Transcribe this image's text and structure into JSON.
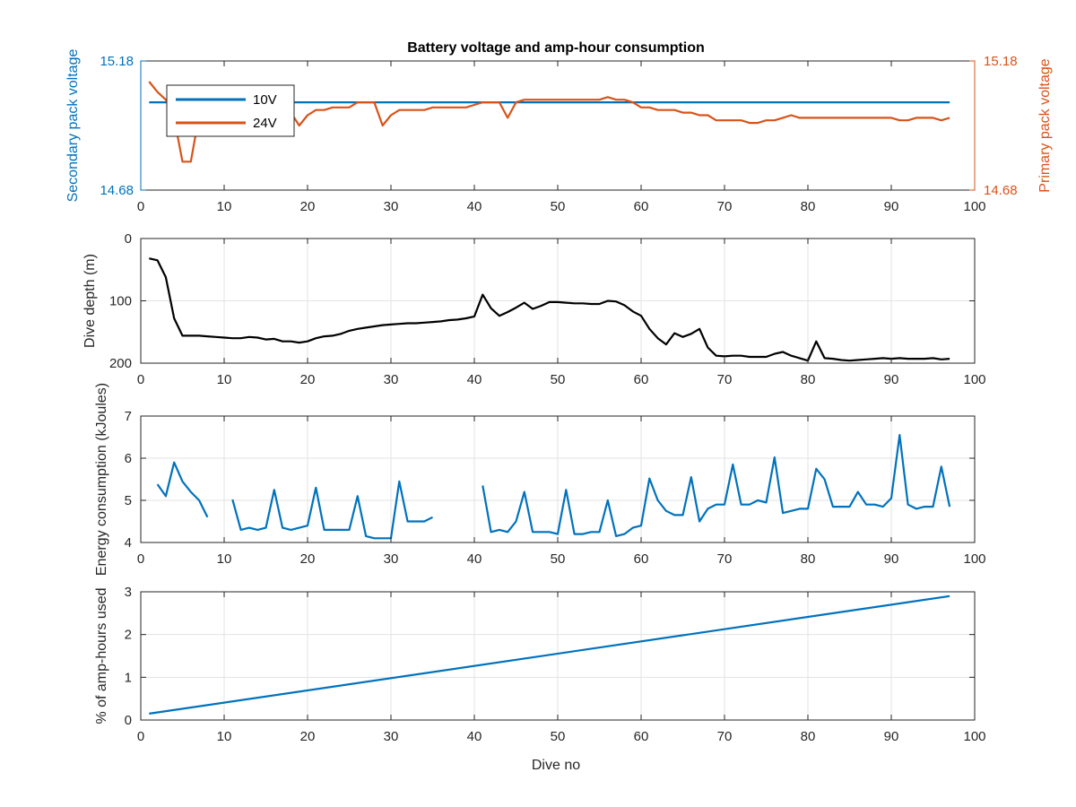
{
  "title": "Battery voltage and amp-hour consumption",
  "xlabel": "Dive no",
  "colors": {
    "blue": "#0072BD",
    "orange": "#D95319",
    "black": "#000000",
    "grid": "#e3e3e3",
    "axis": "#262626"
  },
  "chart_data": [
    {
      "type": "line",
      "ylabel_left": "Secondary pack voltage",
      "ylabel_right": "Primary pack voltage",
      "xlim": [
        0,
        100
      ],
      "ylim": [
        14.68,
        15.18
      ],
      "xticks": [
        0,
        10,
        20,
        30,
        40,
        50,
        60,
        70,
        80,
        90,
        100
      ],
      "yticks_left": [
        "14.68",
        "15.18"
      ],
      "yticks_right": [
        "14.68",
        "15.18"
      ],
      "grid": false,
      "legend": {
        "location": "top-left",
        "entries": [
          "10V",
          "24V"
        ]
      },
      "series": [
        {
          "name": "10V",
          "color": "#0072BD",
          "axis": "left",
          "x": [
            1,
            97
          ],
          "y": [
            15.02,
            15.02
          ]
        },
        {
          "name": "24V",
          "color": "#D95319",
          "axis": "right",
          "x": [
            1,
            2,
            3,
            4,
            5,
            6,
            7,
            8,
            9,
            10,
            11,
            12,
            13,
            14,
            15,
            16,
            17,
            18,
            19,
            20,
            21,
            22,
            23,
            24,
            25,
            26,
            27,
            28,
            29,
            30,
            31,
            32,
            33,
            34,
            35,
            36,
            37,
            38,
            39,
            40,
            41,
            42,
            43,
            44,
            45,
            46,
            47,
            48,
            49,
            50,
            51,
            52,
            53,
            54,
            55,
            56,
            57,
            58,
            59,
            60,
            61,
            62,
            63,
            64,
            65,
            66,
            67,
            68,
            69,
            70,
            71,
            72,
            73,
            74,
            75,
            76,
            77,
            78,
            79,
            80,
            81,
            82,
            83,
            84,
            85,
            86,
            87,
            88,
            89,
            90,
            91,
            92,
            93,
            94,
            95,
            96,
            97
          ],
          "y": [
            15.1,
            15.06,
            15.03,
            14.96,
            14.79,
            14.79,
            14.97,
            14.99,
            14.99,
            14.99,
            14.99,
            14.98,
            14.98,
            14.99,
            14.98,
            14.98,
            14.98,
            14.98,
            14.93,
            14.97,
            14.99,
            14.99,
            15.0,
            15.0,
            15.0,
            15.02,
            15.02,
            15.02,
            14.93,
            14.97,
            14.99,
            14.99,
            14.99,
            14.99,
            15.0,
            15.0,
            15.0,
            15.0,
            15.0,
            15.01,
            15.02,
            15.02,
            15.02,
            14.96,
            15.02,
            15.03,
            15.03,
            15.03,
            15.03,
            15.03,
            15.03,
            15.03,
            15.03,
            15.03,
            15.03,
            15.04,
            15.03,
            15.03,
            15.02,
            15.0,
            15.0,
            14.99,
            14.99,
            14.99,
            14.98,
            14.98,
            14.97,
            14.97,
            14.95,
            14.95,
            14.95,
            14.95,
            14.94,
            14.94,
            14.95,
            14.95,
            14.96,
            14.97,
            14.96,
            14.96,
            14.96,
            14.96,
            14.96,
            14.96,
            14.96,
            14.96,
            14.96,
            14.96,
            14.96,
            14.96,
            14.95,
            14.95,
            14.96,
            14.96,
            14.96,
            14.95,
            14.96
          ]
        }
      ]
    },
    {
      "type": "line",
      "ylabel": "Dive depth (m)",
      "xlim": [
        0,
        100
      ],
      "ylim": [
        0,
        200
      ],
      "y_reversed": true,
      "xticks": [
        0,
        10,
        20,
        30,
        40,
        50,
        60,
        70,
        80,
        90,
        100
      ],
      "yticks": [
        0,
        100,
        200
      ],
      "grid": true,
      "series": [
        {
          "color": "#000000",
          "x": [
            1,
            2,
            3,
            4,
            5,
            6,
            7,
            8,
            9,
            10,
            11,
            12,
            13,
            14,
            15,
            16,
            17,
            18,
            19,
            20,
            21,
            22,
            23,
            24,
            25,
            26,
            27,
            28,
            29,
            30,
            31,
            32,
            33,
            34,
            35,
            36,
            37,
            38,
            39,
            40,
            41,
            42,
            43,
            44,
            45,
            46,
            47,
            48,
            49,
            50,
            51,
            52,
            53,
            54,
            55,
            56,
            57,
            58,
            59,
            60,
            61,
            62,
            63,
            64,
            65,
            66,
            67,
            68,
            69,
            70,
            71,
            72,
            73,
            74,
            75,
            76,
            77,
            78,
            79,
            80,
            81,
            82,
            83,
            84,
            85,
            86,
            87,
            88,
            89,
            90,
            91,
            92,
            93,
            94,
            95,
            96,
            97
          ],
          "y": [
            32,
            35,
            62,
            128,
            156,
            156,
            156,
            157,
            158,
            159,
            160,
            160,
            158,
            159,
            162,
            161,
            165,
            165,
            167,
            165,
            160,
            157,
            156,
            153,
            148,
            145,
            143,
            141,
            139,
            138,
            137,
            136,
            136,
            135,
            134,
            133,
            131,
            130,
            128,
            125,
            90,
            112,
            124,
            118,
            111,
            103,
            113,
            108,
            102,
            102,
            103,
            104,
            104,
            105,
            105,
            100,
            101,
            107,
            117,
            124,
            145,
            160,
            170,
            152,
            158,
            153,
            145,
            175,
            188,
            189,
            188,
            188,
            190,
            190,
            190,
            185,
            182,
            188,
            192,
            196,
            165,
            192,
            193,
            195,
            196,
            195,
            194,
            193,
            192,
            193,
            192,
            193,
            193,
            193,
            192,
            194,
            193
          ]
        }
      ]
    },
    {
      "type": "line",
      "ylabel": "Energy consumption (kJoules)",
      "xlim": [
        0,
        100
      ],
      "ylim": [
        4,
        7
      ],
      "xticks": [
        0,
        10,
        20,
        30,
        40,
        50,
        60,
        70,
        80,
        90,
        100
      ],
      "yticks": [
        4,
        5,
        6,
        7
      ],
      "grid": true,
      "series": [
        {
          "color": "#0072BD",
          "segments": [
            {
              "x": [
                2,
                3,
                4,
                5,
                6,
                7,
                8
              ],
              "y": [
                5.38,
                5.1,
                5.9,
                5.45,
                5.2,
                5.0,
                4.6
              ]
            },
            {
              "x": [
                11,
                12,
                13,
                14,
                15,
                16,
                17,
                18,
                19,
                20,
                21,
                22,
                23,
                24,
                25,
                26,
                27,
                28,
                29,
                30,
                31,
                32,
                33,
                34,
                35
              ],
              "y": [
                5.02,
                4.3,
                4.35,
                4.3,
                4.35,
                5.25,
                4.35,
                4.3,
                4.35,
                4.4,
                5.3,
                4.3,
                4.3,
                4.3,
                4.3,
                5.1,
                4.15,
                4.1,
                4.1,
                4.1,
                5.45,
                4.5,
                4.5,
                4.5,
                4.6
              ]
            },
            {
              "x": [
                41,
                42,
                43,
                44,
                45,
                46,
                47,
                48,
                49,
                50,
                51,
                52,
                53,
                54,
                55,
                56,
                57,
                58,
                59,
                60,
                61,
                62,
                63,
                64,
                65,
                66,
                67,
                68,
                69,
                70,
                71,
                72,
                73,
                74,
                75,
                76,
                77,
                78,
                79,
                80,
                81,
                82,
                83,
                84,
                85,
                86,
                87,
                88,
                89,
                90,
                91,
                92,
                93,
                94,
                95,
                96,
                97
              ],
              "y": [
                5.35,
                4.25,
                4.3,
                4.25,
                4.5,
                5.2,
                4.25,
                4.25,
                4.25,
                4.2,
                5.25,
                4.2,
                4.2,
                4.25,
                4.25,
                5.0,
                4.15,
                4.2,
                4.35,
                4.4,
                5.52,
                5.0,
                4.75,
                4.65,
                4.65,
                5.55,
                4.5,
                4.8,
                4.9,
                4.9,
                5.85,
                4.9,
                4.9,
                5.0,
                4.95,
                6.02,
                4.7,
                4.75,
                4.8,
                4.8,
                5.75,
                5.5,
                4.85,
                4.85,
                4.85,
                5.2,
                4.9,
                4.9,
                4.85,
                5.05,
                6.55,
                4.9,
                4.8,
                4.85,
                4.85,
                5.8,
                4.85
              ]
            }
          ]
        }
      ]
    },
    {
      "type": "line",
      "ylabel": "% of amp-hours used",
      "xlabel": "Dive no",
      "xlim": [
        0,
        100
      ],
      "ylim": [
        0,
        3
      ],
      "xticks": [
        0,
        10,
        20,
        30,
        40,
        50,
        60,
        70,
        80,
        90,
        100
      ],
      "yticks": [
        0,
        1,
        2,
        3
      ],
      "grid": true,
      "series": [
        {
          "color": "#0072BD",
          "x": [
            1,
            97
          ],
          "y": [
            0.15,
            2.9
          ]
        }
      ]
    }
  ]
}
